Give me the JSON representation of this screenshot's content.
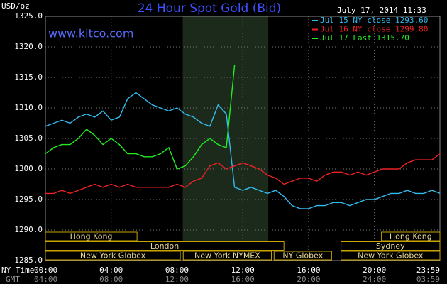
{
  "chart_data": {
    "type": "line",
    "title": "24 Hour Spot Gold (Bid)",
    "timestamp": "July 17, 2014 11:33",
    "watermark": "www.kitco.com",
    "y_label": "USD/oz",
    "x_label": "NY Time",
    "x2_label": "GMT",
    "x": [
      0,
      0.5,
      1,
      1.5,
      2,
      2.5,
      3,
      3.5,
      4,
      4.5,
      5,
      5.5,
      6,
      6.5,
      7,
      7.5,
      8,
      8.5,
      9,
      9.5,
      10,
      10.5,
      11,
      11.5,
      12,
      12.5,
      13,
      13.5,
      14,
      14.5,
      15,
      15.5,
      16,
      16.5,
      17,
      17.5,
      18,
      18.5,
      19,
      19.5,
      20,
      20.5,
      21,
      21.5,
      22,
      22.5,
      23,
      23.5,
      24
    ],
    "series": [
      {
        "name": "Jul 15 NY close 1293.60",
        "color": "#33bbee",
        "values": [
          1307,
          1307.5,
          1308,
          1307.5,
          1308.5,
          1309,
          1308.5,
          1309.5,
          1308,
          1308.5,
          1311.5,
          1312.5,
          1311.5,
          1310.5,
          1310,
          1309.5,
          1310,
          1309,
          1308.5,
          1307.5,
          1307,
          1310.5,
          1309,
          1297,
          1296.5,
          1297,
          1296.5,
          1296,
          1296.5,
          1295.5,
          1294,
          1293.5,
          1293.5,
          1294,
          1294,
          1294.5,
          1294.5,
          1294,
          1294.5,
          1295,
          1295,
          1295.5,
          1296,
          1296,
          1296.5,
          1296,
          1296,
          1296.5,
          1296
        ]
      },
      {
        "name": "Jul 16 NY close 1299.80",
        "color": "#ee2222",
        "values": [
          1296,
          1296,
          1296.5,
          1296,
          1296.5,
          1297,
          1297.5,
          1297,
          1297.5,
          1297,
          1297.5,
          1297,
          1297,
          1297,
          1297,
          1297,
          1297.5,
          1297,
          1298,
          1298.5,
          1300.5,
          1301,
          1300,
          1300.5,
          1301,
          1300.5,
          1300,
          1299,
          1298.5,
          1297.5,
          1298,
          1298.5,
          1298.5,
          1298,
          1299,
          1299.5,
          1299.5,
          1299,
          1299.5,
          1299,
          1299.5,
          1300,
          1300,
          1300,
          1301,
          1301.5,
          1301.5,
          1301.5,
          1302.5
        ]
      },
      {
        "name": "Jul 17 Last 1315.70",
        "color": "#22ee22",
        "values": [
          1302.5,
          1303.5,
          1304,
          1304,
          1305,
          1306.5,
          1305.5,
          1304,
          1305,
          1304,
          1302.5,
          1302.5,
          1302,
          1302,
          1302.5,
          1303.5,
          1300,
          1300.5,
          1302,
          1304,
          1305,
          1304,
          1303.5,
          1317,
          null,
          null,
          null,
          null,
          null,
          null,
          null,
          null,
          null,
          null,
          null,
          null,
          null,
          null,
          null,
          null,
          null,
          null,
          null,
          null,
          null,
          null,
          null,
          null,
          null
        ]
      }
    ],
    "xlim": [
      0,
      23.983
    ],
    "xticks": [
      {
        "value": 0,
        "label": "00:00"
      },
      {
        "value": 4,
        "label": "04:00"
      },
      {
        "value": 8,
        "label": "08:00"
      },
      {
        "value": 12,
        "label": "12:00"
      },
      {
        "value": 16,
        "label": "16:00"
      },
      {
        "value": 20,
        "label": "20:00"
      },
      {
        "value": 23.983,
        "label": "23:59"
      }
    ],
    "x2tick_labels": [
      "04:00",
      "08:00",
      "12:00",
      "16:00",
      "20:00",
      "24:00",
      "03:59"
    ],
    "ylim": [
      1285,
      1325
    ],
    "yticks": [
      {
        "value": 1285,
        "label": "1285.0"
      },
      {
        "value": 1290,
        "label": "1290.0"
      },
      {
        "value": 1295,
        "label": "1295.0"
      },
      {
        "value": 1300,
        "label": "1300.0"
      },
      {
        "value": 1305,
        "label": "1305.0"
      },
      {
        "value": 1310,
        "label": "1310.0"
      },
      {
        "value": 1315,
        "label": "1315.0"
      },
      {
        "value": 1320,
        "label": "1320.0"
      },
      {
        "value": 1325,
        "label": "1325.0"
      }
    ],
    "grid": true,
    "highlight_range": [
      8.35,
      13.55
    ],
    "session_rows": [
      [
        {
          "label": "Hong Kong",
          "start": 0,
          "end": 5.57
        },
        {
          "label": "Hong Kong",
          "start": 20.43,
          "end": 23.983
        }
      ],
      [
        {
          "label": "London",
          "start": 0,
          "end": 14.5
        },
        {
          "label": "Sydney",
          "start": 17.97,
          "end": 23.983
        }
      ],
      [
        {
          "label": "New York Globex",
          "start": 0,
          "end": 8.2
        },
        {
          "label": "New York NYMEX",
          "start": 8.38,
          "end": 13.74
        },
        {
          "label": "NY Globex",
          "start": 13.9,
          "end": 17.4
        },
        {
          "label": "New York Globex",
          "start": 17.97,
          "end": 23.983
        }
      ]
    ]
  }
}
